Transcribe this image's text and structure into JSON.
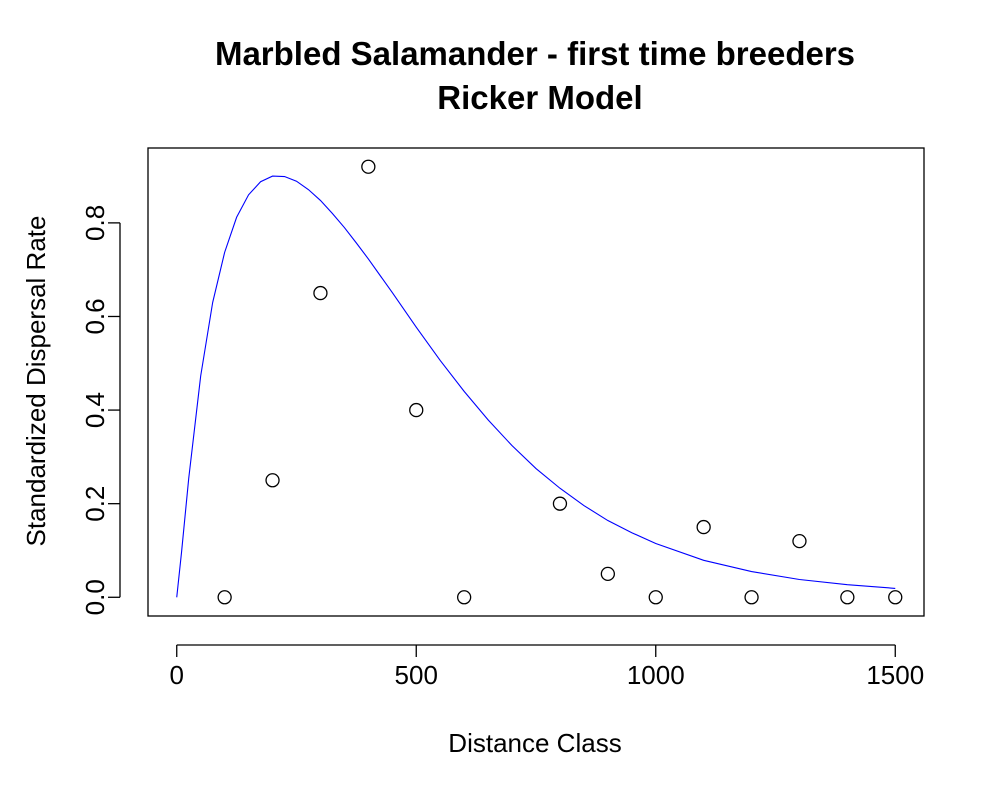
{
  "chart_data": {
    "type": "scatter",
    "title": "Marbled Salamander - first time breeders",
    "subtitle": "Ricker Model",
    "xlabel": "Distance Class",
    "ylabel": "Standardized Dispersal Rate",
    "xlim": [
      -60,
      1560
    ],
    "ylim": [
      -0.04,
      0.96
    ],
    "xticks": [
      0,
      500,
      1000,
      1500
    ],
    "xtick_labels": [
      "0",
      "500",
      "1000",
      "1500"
    ],
    "yticks": [
      0.0,
      0.2,
      0.4,
      0.6,
      0.8
    ],
    "ytick_labels": [
      "0.0",
      "0.2",
      "0.4",
      "0.6",
      "0.8"
    ],
    "grid": false,
    "legend": "none",
    "points": {
      "x": [
        100,
        200,
        300,
        400,
        500,
        600,
        800,
        900,
        1000,
        1100,
        1200,
        1300,
        1400,
        1500
      ],
      "y": [
        0.0,
        0.25,
        0.65,
        0.92,
        0.4,
        0.0,
        0.2,
        0.05,
        0.0,
        0.15,
        0.0,
        0.12,
        0.0,
        0.0
      ],
      "marker": "open-circle",
      "color": "#000000"
    },
    "fit_curve": {
      "model": "ricker",
      "color": "#0000ff",
      "x": [
        0,
        10,
        25,
        50,
        75,
        100,
        125,
        150,
        175,
        200,
        225,
        250,
        275,
        300,
        325,
        350,
        375,
        400,
        450,
        500,
        550,
        600,
        650,
        700,
        750,
        800,
        850,
        900,
        950,
        1000,
        1100,
        1200,
        1300,
        1400,
        1500
      ],
      "y": [
        0.0,
        0.096,
        0.254,
        0.473,
        0.63,
        0.737,
        0.812,
        0.86,
        0.888,
        0.9,
        0.899,
        0.889,
        0.871,
        0.848,
        0.82,
        0.79,
        0.757,
        0.723,
        0.651,
        0.577,
        0.506,
        0.44,
        0.379,
        0.324,
        0.275,
        0.233,
        0.196,
        0.164,
        0.138,
        0.115,
        0.079,
        0.055,
        0.038,
        0.027,
        0.019
      ]
    }
  }
}
